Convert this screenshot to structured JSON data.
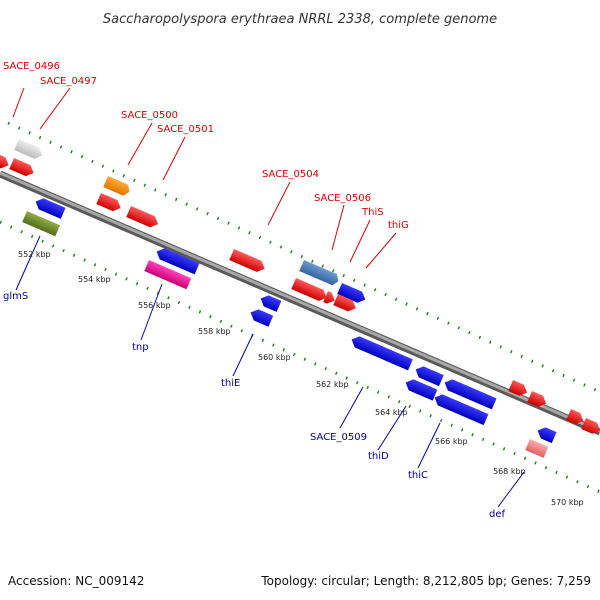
{
  "title": "Saccharopolyspora erythraea NRRL 2338, complete genome",
  "footer": {
    "accession": "Accession: NC_009142",
    "topology": "Topology: circular; Length: 8,212,805 bp; Genes: 7,259"
  },
  "colors": {
    "backbone": "#808080",
    "forward_gene": "#ff0000",
    "reverse_gene": "#0000ff",
    "tick_marks": "#228822",
    "label_forward": "#dd0000",
    "label_reverse": "#0000aa"
  },
  "scale_labels": [
    "552 kbp",
    "554 kbp",
    "556 kbp",
    "558 kbp",
    "560 kbp",
    "562 kbp",
    "564 kbp",
    "566 kbp",
    "568 kbp",
    "570 kbp"
  ],
  "genes_forward": [
    {
      "label": "SACE_0496",
      "color": "#d0d0d0"
    },
    {
      "label": "SACE_0497",
      "color": "#ff0000"
    },
    {
      "label": "SACE_0500",
      "color": "#ff8800"
    },
    {
      "label": "SACE_0501",
      "color": "#ff0000"
    },
    {
      "label": "SACE_0504",
      "color": "#ff0000"
    },
    {
      "label": "SACE_0506",
      "color": "#4477bb"
    },
    {
      "label": "ThiS",
      "color": "#ff0000"
    },
    {
      "label": "thiG",
      "color": "#ff0000"
    }
  ],
  "genes_reverse": [
    {
      "label": "glmS",
      "color": "#6b8e23"
    },
    {
      "label": "tnp",
      "color": "#ee1199"
    },
    {
      "label": "thiE",
      "color": "#0000ff"
    },
    {
      "label": "SACE_0509",
      "color": "#0000ff"
    },
    {
      "label": "thiD",
      "color": "#0000ff"
    },
    {
      "label": "thiC",
      "color": "#0000ff"
    },
    {
      "label": "def",
      "color": "#ff8080"
    }
  ]
}
